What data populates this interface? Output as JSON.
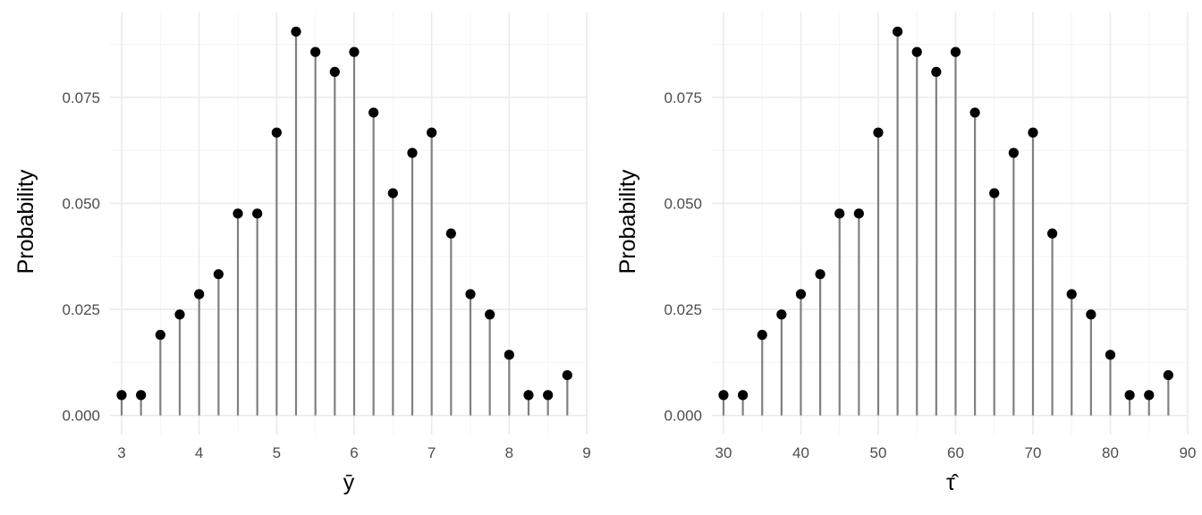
{
  "chart_data": [
    {
      "type": "lollipop",
      "xlabel": "ȳ",
      "ylabel": "Probability",
      "x_ticks": [
        3,
        4,
        5,
        6,
        7,
        8,
        9
      ],
      "y_ticks": [
        "0.000",
        "0.025",
        "0.050",
        "0.075"
      ],
      "xlim": [
        2.85,
        9.0
      ],
      "ylim": [
        -0.0045,
        0.095
      ],
      "grid": true,
      "x": [
        3,
        3.25,
        3.5,
        3.75,
        4,
        4.25,
        4.5,
        4.75,
        5,
        5.25,
        5.5,
        5.75,
        6,
        6.25,
        6.5,
        6.75,
        7,
        7.25,
        7.5,
        7.75,
        8,
        8.25,
        8.5,
        8.75
      ],
      "y": [
        0.0048,
        0.0048,
        0.019,
        0.0238,
        0.0286,
        0.0333,
        0.0476,
        0.0476,
        0.0667,
        0.0905,
        0.0857,
        0.081,
        0.0857,
        0.0714,
        0.0524,
        0.0619,
        0.0667,
        0.0429,
        0.0286,
        0.0238,
        0.0143,
        0.0048,
        0.0048,
        0.0095
      ]
    },
    {
      "type": "lollipop",
      "xlabel": "τ̂",
      "ylabel": "Probability",
      "x_ticks": [
        30,
        40,
        50,
        60,
        70,
        80,
        90
      ],
      "y_ticks": [
        "0.000",
        "0.025",
        "0.050",
        "0.075"
      ],
      "xlim": [
        28.5,
        90.0
      ],
      "ylim": [
        -0.0045,
        0.095
      ],
      "grid": true,
      "x": [
        30,
        32.5,
        35,
        37.5,
        40,
        42.5,
        45,
        47.5,
        50,
        52.5,
        55,
        57.5,
        60,
        62.5,
        65,
        67.5,
        70,
        72.5,
        75,
        77.5,
        80,
        82.5,
        85,
        87.5
      ],
      "y": [
        0.0048,
        0.0048,
        0.019,
        0.0238,
        0.0286,
        0.0333,
        0.0476,
        0.0476,
        0.0667,
        0.0905,
        0.0857,
        0.081,
        0.0857,
        0.0714,
        0.0524,
        0.0619,
        0.0667,
        0.0429,
        0.0286,
        0.0238,
        0.0143,
        0.0048,
        0.0048,
        0.0095
      ]
    }
  ]
}
